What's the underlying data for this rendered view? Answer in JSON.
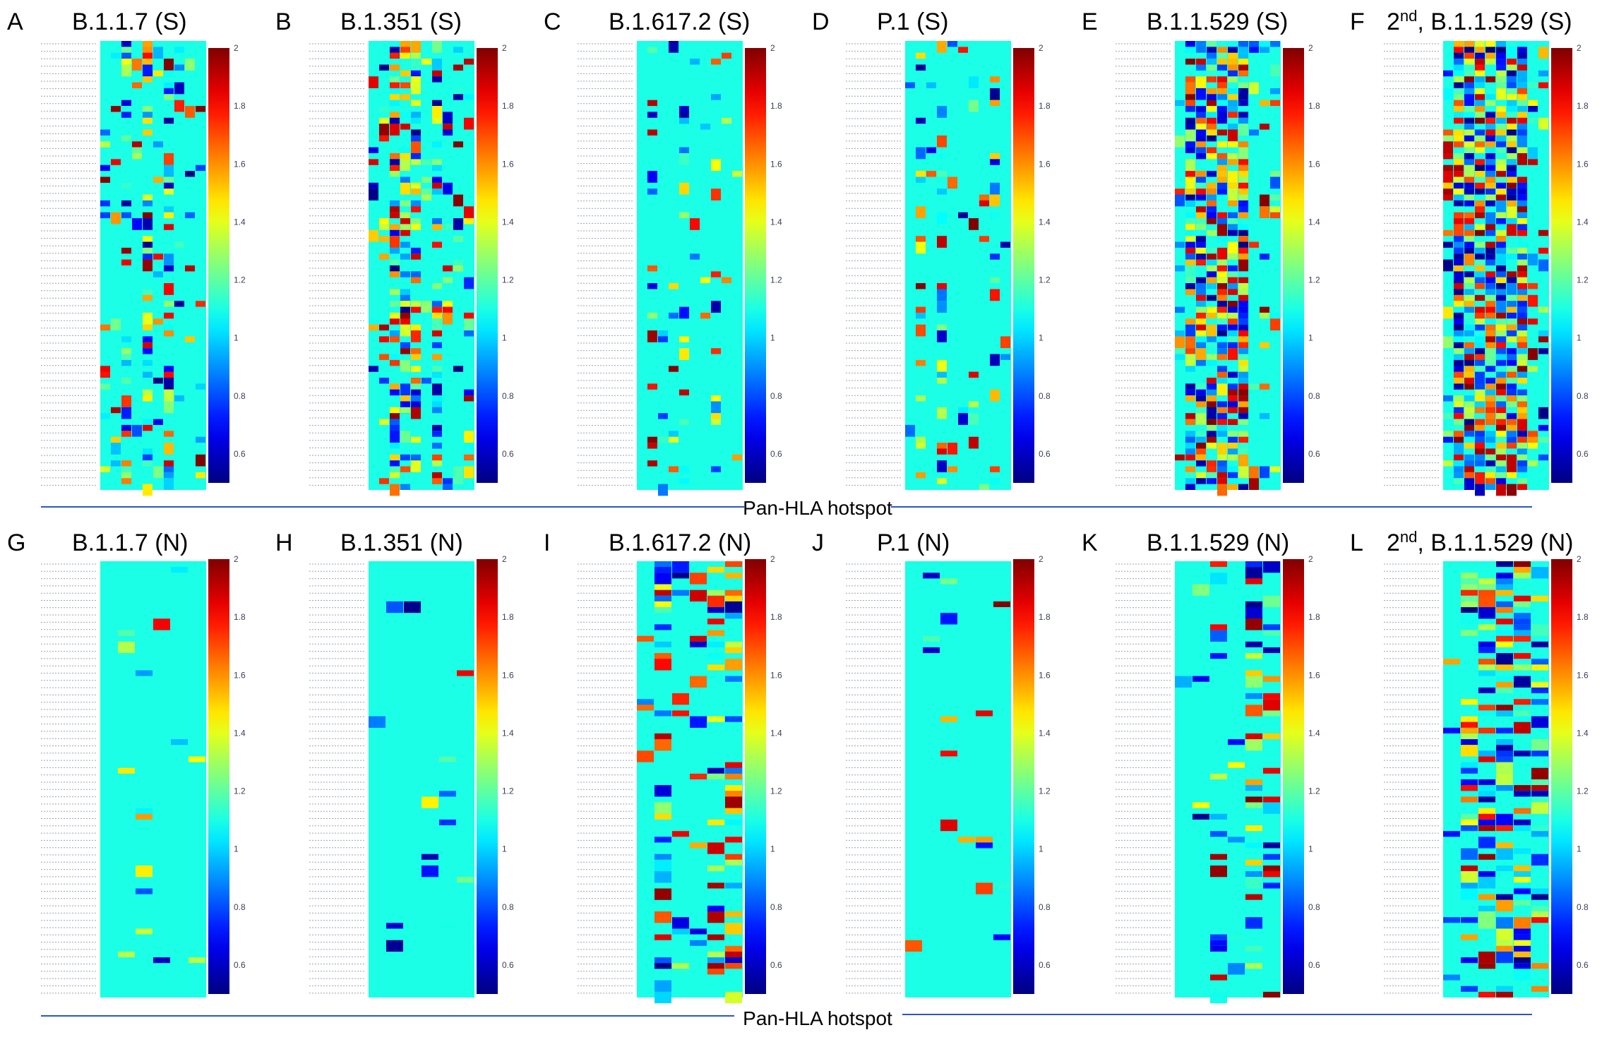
{
  "chart_data": {
    "type": "heatmap",
    "colorbar": {
      "min": 0.5,
      "max": 2,
      "ticks": [
        "2",
        "1.8",
        "1.6",
        "1.4",
        "1.2",
        "1",
        "0.8",
        "0.6"
      ],
      "tick_values": [
        2,
        1.8,
        1.6,
        1.4,
        1.2,
        1,
        0.8,
        0.6
      ],
      "colormap": "jet"
    },
    "row_groups": [
      {
        "label": "Pan-HLA hotspot",
        "panels": [
          {
            "letter": "A",
            "title": "B.1.1.7 (S)",
            "sup": "",
            "seed": 11,
            "cols": 10,
            "density": 0.2,
            "hot_cols": [
              2,
              4,
              6
            ]
          },
          {
            "letter": "B",
            "title": "B.1.351 (S)",
            "sup": "",
            "seed": 23,
            "cols": 10,
            "density": 0.24,
            "hot_cols": [
              2,
              3,
              4,
              6
            ]
          },
          {
            "letter": "C",
            "title": "B.1.617.2 (S)",
            "sup": "",
            "seed": 37,
            "cols": 10,
            "density": 0.09,
            "hot_cols": [
              1,
              4,
              7
            ]
          },
          {
            "letter": "D",
            "title": "P.1 (S)",
            "sup": "",
            "seed": 41,
            "cols": 10,
            "density": 0.12,
            "hot_cols": [
              1,
              3,
              8
            ]
          },
          {
            "letter": "E",
            "title": "B.1.1.529 (S)",
            "sup": "",
            "seed": 53,
            "cols": 10,
            "density": 0.36,
            "hot_cols": [
              1,
              2,
              3,
              4,
              5,
              6
            ]
          },
          {
            "letter": "F",
            "title": ", B.1.1.529 (S)",
            "sup": "nd",
            "prefix": "2",
            "seed": 67,
            "cols": 10,
            "density": 0.42,
            "hot_cols": [
              1,
              2,
              3,
              4,
              5,
              6,
              7
            ]
          }
        ]
      },
      {
        "label": "Pan-HLA hotspot",
        "panels": [
          {
            "letter": "G",
            "title": "B.1.1.7 (N)",
            "sup": "",
            "seed": 71,
            "cols": 6,
            "density": 0.05,
            "hot_cols": [
              2
            ]
          },
          {
            "letter": "H",
            "title": "B.1.351 (N)",
            "sup": "",
            "seed": 83,
            "cols": 6,
            "density": 0.04,
            "hot_cols": [
              2
            ]
          },
          {
            "letter": "I",
            "title": "B.1.617.2 (N)",
            "sup": "",
            "seed": 97,
            "cols": 6,
            "density": 0.16,
            "hot_cols": [
              1,
              4,
              5
            ]
          },
          {
            "letter": "J",
            "title": "P.1 (N)",
            "sup": "",
            "seed": 101,
            "cols": 6,
            "density": 0.05,
            "hot_cols": [
              2
            ]
          },
          {
            "letter": "K",
            "title": "B.1.1.529 (N)",
            "sup": "",
            "seed": 113,
            "cols": 6,
            "density": 0.12,
            "hot_cols": [
              2,
              4,
              5
            ]
          },
          {
            "letter": "L",
            "title": ", B.1.1.529 (N)",
            "sup": "nd",
            "prefix": "2",
            "seed": 127,
            "cols": 6,
            "density": 0.22,
            "hot_cols": [
              1,
              2,
              3,
              4,
              5
            ]
          }
        ]
      }
    ]
  }
}
